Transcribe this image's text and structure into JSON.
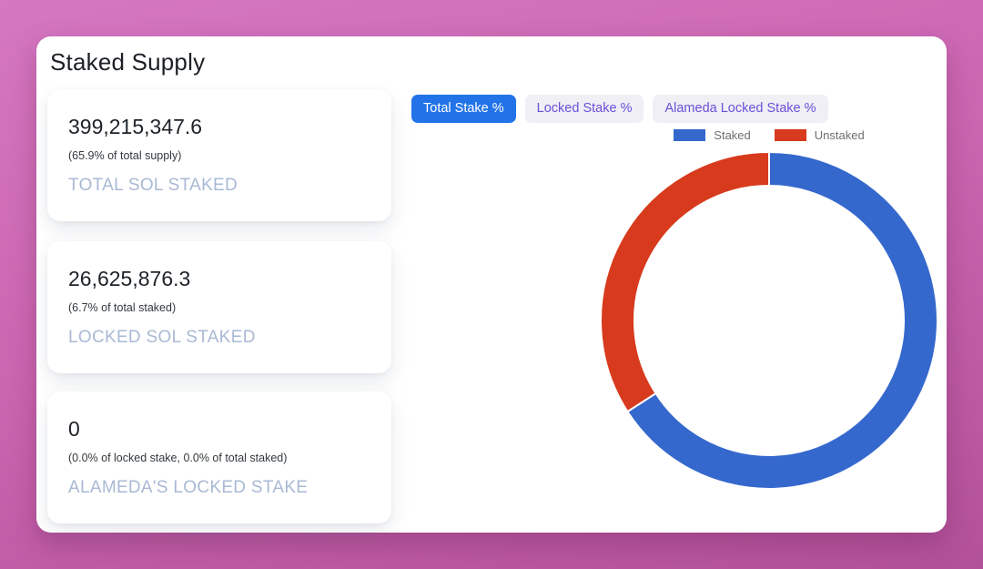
{
  "page": {
    "title": "Staked Supply"
  },
  "stats": [
    {
      "value": "399,215,347.6",
      "note": "(65.9% of total supply)",
      "label": "TOTAL SOL STAKED"
    },
    {
      "value": "26,625,876.3",
      "note": "(6.7% of total staked)",
      "label": "LOCKED SOL STAKED"
    },
    {
      "value": "0",
      "note": "(0.0% of locked stake, 0.0% of total staked)",
      "label": "ALAMEDA'S LOCKED STAKE"
    }
  ],
  "tabs": [
    {
      "label": "Total Stake %",
      "active": true
    },
    {
      "label": "Locked Stake %",
      "active": false
    },
    {
      "label": "Alameda Locked Stake %",
      "active": false
    }
  ],
  "colors": {
    "active_tab_bg": "#2273e8",
    "active_tab_text": "#ffffff",
    "inactive_tab_bg": "#efeff5",
    "inactive_tab_text": "#6c50d9",
    "stat_label": "#a9b9d4",
    "staked": "#3568cd",
    "unstaked": "#d73a1c",
    "background_pink": "#cb66b1"
  },
  "chart_data": {
    "type": "pie",
    "variant": "donut",
    "title": "Total Stake %",
    "legend_position": "top",
    "start_angle_deg": 0,
    "direction": "clockwise",
    "slices": [
      {
        "label": "Staked",
        "value": 65.9,
        "color": "#3568cd"
      },
      {
        "label": "Unstaked",
        "value": 34.1,
        "color": "#d73a1c"
      }
    ]
  }
}
